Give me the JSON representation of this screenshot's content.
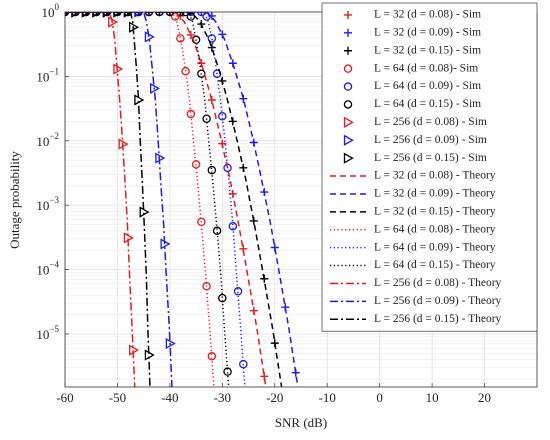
{
  "chart_data": {
    "type": "line",
    "xlabel": "SNR (dB)",
    "ylabel": "Outage probability",
    "xlim": [
      -60,
      30
    ],
    "xticks": [
      -60,
      -50,
      -40,
      -30,
      -20,
      -10,
      0,
      10,
      20
    ],
    "ylim": [
      1.5e-06,
      1
    ],
    "ylog": true,
    "yticks": [
      {
        "value": 1,
        "label": "10",
        "exponent": "0"
      },
      {
        "value": 0.1,
        "label": "10",
        "exponent": "−1"
      },
      {
        "value": 0.01,
        "label": "10",
        "exponent": "−2"
      },
      {
        "value": 0.001,
        "label": "10",
        "exponent": "−3"
      },
      {
        "value": 0.0001,
        "label": "10",
        "exponent": "−4"
      },
      {
        "value": 1e-05,
        "label": "10",
        "exponent": "−5"
      }
    ],
    "grid": true,
    "minor_grid": true,
    "legend": "upper right",
    "series": [
      {
        "name": "L = 32 (d = 0.08) - Sim",
        "color": "#e8191b",
        "marker": "+",
        "x": [
          -60,
          -58,
          -56,
          -54,
          -52,
          -50,
          -48,
          -46,
          -44,
          -42,
          -40,
          -38,
          -36,
          -34,
          -32,
          -30,
          -28,
          -26,
          -24,
          -22
        ],
        "values": [
          1,
          1,
          1,
          1,
          1,
          1,
          1,
          1,
          1,
          1,
          1,
          0.87,
          0.44,
          0.16,
          0.043,
          0.009,
          0.0015,
          0.00021,
          2.3e-05,
          2.2e-06
        ]
      },
      {
        "name": "L = 32 (d = 0.09) - Sim",
        "color": "#1a1aef",
        "marker": "+",
        "x": [
          -60,
          -58,
          -56,
          -54,
          -52,
          -50,
          -48,
          -46,
          -44,
          -42,
          -40,
          -38,
          -36,
          -34,
          -32,
          -30,
          -28,
          -26,
          -24,
          -22,
          -20,
          -18,
          -16
        ],
        "values": [
          1,
          1,
          1,
          1,
          1,
          1,
          1,
          1,
          1,
          1,
          1,
          1,
          1,
          1,
          0.87,
          0.45,
          0.16,
          0.045,
          0.0094,
          0.0016,
          0.00022,
          2.6e-05,
          2.5e-06
        ]
      },
      {
        "name": "L = 32 (d = 0.15) - Sim",
        "color": "#000000",
        "marker": "+",
        "x": [
          -60,
          -58,
          -56,
          -54,
          -52,
          -50,
          -48,
          -46,
          -44,
          -42,
          -40,
          -38,
          -36,
          -34,
          -32,
          -30,
          -28,
          -26,
          -24,
          -22,
          -20
        ],
        "values": [
          1,
          1,
          1,
          1,
          1,
          1,
          1,
          1,
          1,
          1,
          1,
          1,
          1,
          0.65,
          0.28,
          0.085,
          0.02,
          0.0038,
          0.00057,
          7.2e-05,
          7.2e-06
        ]
      },
      {
        "name": "L = 64 (d = 0.08)- Sim",
        "color": "#e8191b",
        "marker": "o",
        "x": [
          -60,
          -58,
          -56,
          -54,
          -52,
          -50,
          -48,
          -46,
          -44,
          -42,
          -40,
          -39,
          -38,
          -37,
          -36,
          -35,
          -34,
          -33,
          -32
        ],
        "values": [
          1,
          1,
          1,
          1,
          1,
          1,
          1,
          1,
          1,
          1,
          1,
          0.85,
          0.39,
          0.12,
          0.026,
          0.0043,
          0.00055,
          5.5e-05,
          4.5e-06
        ]
      },
      {
        "name": "L = 64 (d = 0.09) - Sim",
        "color": "#1a1aef",
        "marker": "o",
        "x": [
          -60,
          -58,
          -56,
          -54,
          -52,
          -50,
          -48,
          -46,
          -44,
          -42,
          -40,
          -38,
          -36,
          -34,
          -33,
          -32,
          -31,
          -30,
          -29,
          -28,
          -27,
          -26
        ],
        "values": [
          1,
          1,
          1,
          1,
          1,
          1,
          1,
          1,
          1,
          1,
          1,
          1,
          1,
          1,
          0.85,
          0.39,
          0.11,
          0.024,
          0.0038,
          0.00047,
          4.6e-05,
          3.4e-06
        ]
      },
      {
        "name": "L = 64 (d = 0.15) - Sim",
        "color": "#000000",
        "marker": "o",
        "x": [
          -60,
          -58,
          -56,
          -54,
          -52,
          -50,
          -48,
          -46,
          -44,
          -42,
          -40,
          -38,
          -37,
          -36,
          -35,
          -34,
          -33,
          -32,
          -31,
          -30,
          -29
        ],
        "values": [
          1,
          1,
          1,
          1,
          1,
          1,
          1,
          1,
          1,
          1,
          1,
          1,
          1,
          0.85,
          0.37,
          0.11,
          0.022,
          0.0035,
          0.0004,
          3.6e-05,
          2.6e-06
        ]
      },
      {
        "name": "L = 256 (d = 0.08) - Sim",
        "color": "#e8191b",
        "marker": ">",
        "x": [
          -60,
          -58,
          -56,
          -54,
          -52,
          -51,
          -50,
          -49,
          -48,
          -47
        ],
        "values": [
          1,
          1,
          1,
          1,
          1,
          0.7,
          0.13,
          0.0089,
          0.00031,
          5.6e-06
        ]
      },
      {
        "name": "L = 256 (d = 0.09) - Sim",
        "color": "#1a1aef",
        "marker": ">",
        "x": [
          -60,
          -58,
          -56,
          -54,
          -52,
          -50,
          -48,
          -46,
          -44,
          -43,
          -42,
          -41,
          -40
        ],
        "values": [
          1,
          1,
          1,
          1,
          1,
          1,
          1,
          1,
          0.41,
          0.065,
          0.0054,
          0.00025,
          7.1e-06
        ]
      },
      {
        "name": "L = 256 (d = 0.15) - Sim",
        "color": "#000000",
        "marker": ">",
        "x": [
          -60,
          -58,
          -56,
          -54,
          -52,
          -50,
          -48,
          -47,
          -46,
          -45,
          -44
        ],
        "values": [
          1,
          1,
          1,
          1,
          1,
          1,
          1,
          0.58,
          0.043,
          0.00078,
          4.7e-06
        ]
      },
      {
        "name": "L = 32 (d = 0.08) - Theory",
        "color": "#e8191b",
        "linestyle": "dashed",
        "x": [
          -60,
          -39,
          -37.3,
          -35.5,
          -33.8,
          -32.1,
          -30.4,
          -28.6,
          -26.9,
          -25.2,
          -23.4,
          -21.7
        ],
        "values": [
          1,
          1,
          0.714,
          0.363,
          0.141,
          0.0457,
          0.012,
          0.00269,
          0.00051,
          8.5e-05,
          1.2e-05,
          1.5e-06
        ]
      },
      {
        "name": "L = 32 (d = 0.09) - Theory",
        "color": "#1a1aef",
        "linestyle": "dashed",
        "x": [
          -60,
          -33,
          -31.3,
          -29.5,
          -27.8,
          -26,
          -24.3,
          -22.6,
          -20.8,
          -19.1,
          -17.3,
          -15.6
        ],
        "values": [
          1,
          1,
          0.714,
          0.363,
          0.141,
          0.0457,
          0.012,
          0.00269,
          0.00051,
          8.5e-05,
          1.2e-05,
          1.5e-06
        ]
      },
      {
        "name": "L = 32 (d = 0.15) - Theory",
        "color": "#000000",
        "linestyle": "dashed",
        "x": [
          -60,
          -36,
          -34.3,
          -32.5,
          -30.8,
          -29.1,
          -27.4,
          -25.6,
          -23.9,
          -22.2,
          -20.4,
          -18.7
        ],
        "values": [
          1,
          1,
          0.714,
          0.363,
          0.141,
          0.0457,
          0.012,
          0.00269,
          0.00051,
          8.5e-05,
          1.2e-05,
          1.5e-06
        ]
      },
      {
        "name": "L = 64 (d = 0.08) - Theory",
        "color": "#e8191b",
        "linestyle": "dotted",
        "x": [
          -60,
          -39.5,
          -38.7,
          -37.9,
          -37.1,
          -36.3,
          -35.6,
          -34.8,
          -34,
          -33.2,
          -32.4,
          -31.6
        ],
        "values": [
          1,
          1,
          0.714,
          0.363,
          0.141,
          0.0457,
          0.012,
          0.00269,
          0.00051,
          8.5e-05,
          1.2e-05,
          1.5e-06
        ]
      },
      {
        "name": "L = 64 (d = 0.09) - Theory",
        "color": "#1a1aef",
        "linestyle": "dotted",
        "x": [
          -60,
          -33.5,
          -32.7,
          -31.9,
          -31.2,
          -30.4,
          -29.6,
          -28.8,
          -28,
          -27.3,
          -26.5,
          -25.7
        ],
        "values": [
          1,
          1,
          0.714,
          0.363,
          0.141,
          0.0457,
          0.012,
          0.00269,
          0.00051,
          8.5e-05,
          1.2e-05,
          1.5e-06
        ]
      },
      {
        "name": "L = 64 (d = 0.15) - Theory",
        "color": "#000000",
        "linestyle": "dotted",
        "x": [
          -60,
          -36.5,
          -35.7,
          -35,
          -34.2,
          -33.4,
          -32.7,
          -31.9,
          -31.1,
          -30.3,
          -29.6,
          -28.8
        ],
        "values": [
          1,
          1,
          0.714,
          0.363,
          0.141,
          0.0457,
          0.012,
          0.00269,
          0.00051,
          8.5e-05,
          1.2e-05,
          1.5e-06
        ]
      },
      {
        "name": "L = 256 (d = 0.08) - Theory",
        "color": "#e8191b",
        "linestyle": "dashdot",
        "x": [
          -60,
          -51.5,
          -51,
          -50.5,
          -50.1,
          -49.6,
          -49.1,
          -48.6,
          -48.1,
          -47.7,
          -47.2,
          -46.7
        ],
        "values": [
          1,
          1,
          0.714,
          0.363,
          0.141,
          0.0457,
          0.012,
          0.00269,
          0.00051,
          8.5e-05,
          1.2e-05,
          1.5e-06
        ]
      },
      {
        "name": "L = 256 (d = 0.09) - Theory",
        "color": "#1a1aef",
        "linestyle": "dashdot",
        "x": [
          -60,
          -45,
          -44.5,
          -43.9,
          -43.4,
          -42.8,
          -42.3,
          -41.8,
          -41.2,
          -40.7,
          -40.1,
          -39.6
        ],
        "values": [
          1,
          1,
          0.714,
          0.363,
          0.141,
          0.0457,
          0.012,
          0.00269,
          0.00051,
          8.5e-05,
          1.2e-05,
          1.5e-06
        ]
      },
      {
        "name": "L = 256 (d = 0.15) - Theory",
        "color": "#000000",
        "linestyle": "dashdot",
        "x": [
          -60,
          -47.5,
          -47.1,
          -46.8,
          -46.4,
          -46,
          -45.7,
          -45.3,
          -44.9,
          -44.5,
          -44.2,
          -43.8
        ],
        "values": [
          1,
          1,
          0.714,
          0.363,
          0.141,
          0.0457,
          0.012,
          0.00269,
          0.00051,
          8.5e-05,
          1.2e-05,
          1.5e-06
        ]
      }
    ]
  }
}
